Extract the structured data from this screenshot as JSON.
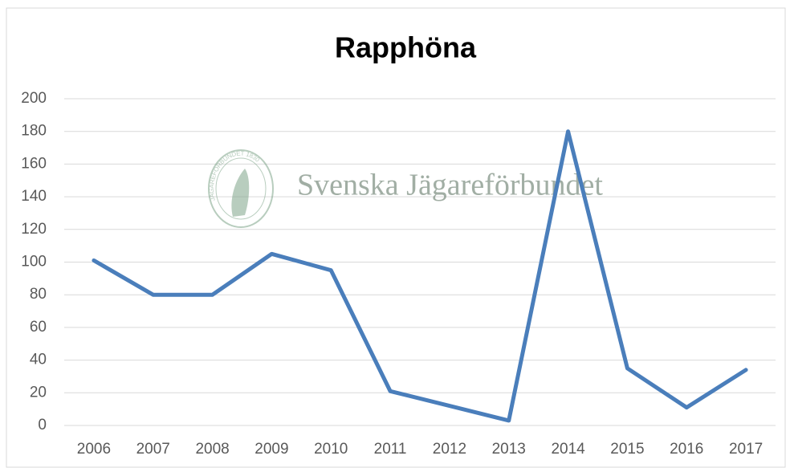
{
  "chart_data": {
    "type": "line",
    "title": "Rapphöna",
    "watermark": "Svenska Jägareförbundet",
    "logo_text": "JÄGAREFÖRBUNDET 1830",
    "categories": [
      "2006",
      "2007",
      "2008",
      "2009",
      "2010",
      "2011",
      "2012",
      "2013",
      "2014",
      "2015",
      "2016",
      "2017"
    ],
    "series": [
      {
        "name": "Rapphöna",
        "color": "#4a7ebb",
        "values": [
          101,
          80,
          80,
          105,
          95,
          21,
          12,
          3,
          180,
          35,
          11,
          34
        ]
      }
    ],
    "ylim": [
      0,
      200
    ],
    "yticks": [
      0,
      20,
      40,
      60,
      80,
      100,
      120,
      140,
      160,
      180,
      200
    ],
    "grid": true
  }
}
